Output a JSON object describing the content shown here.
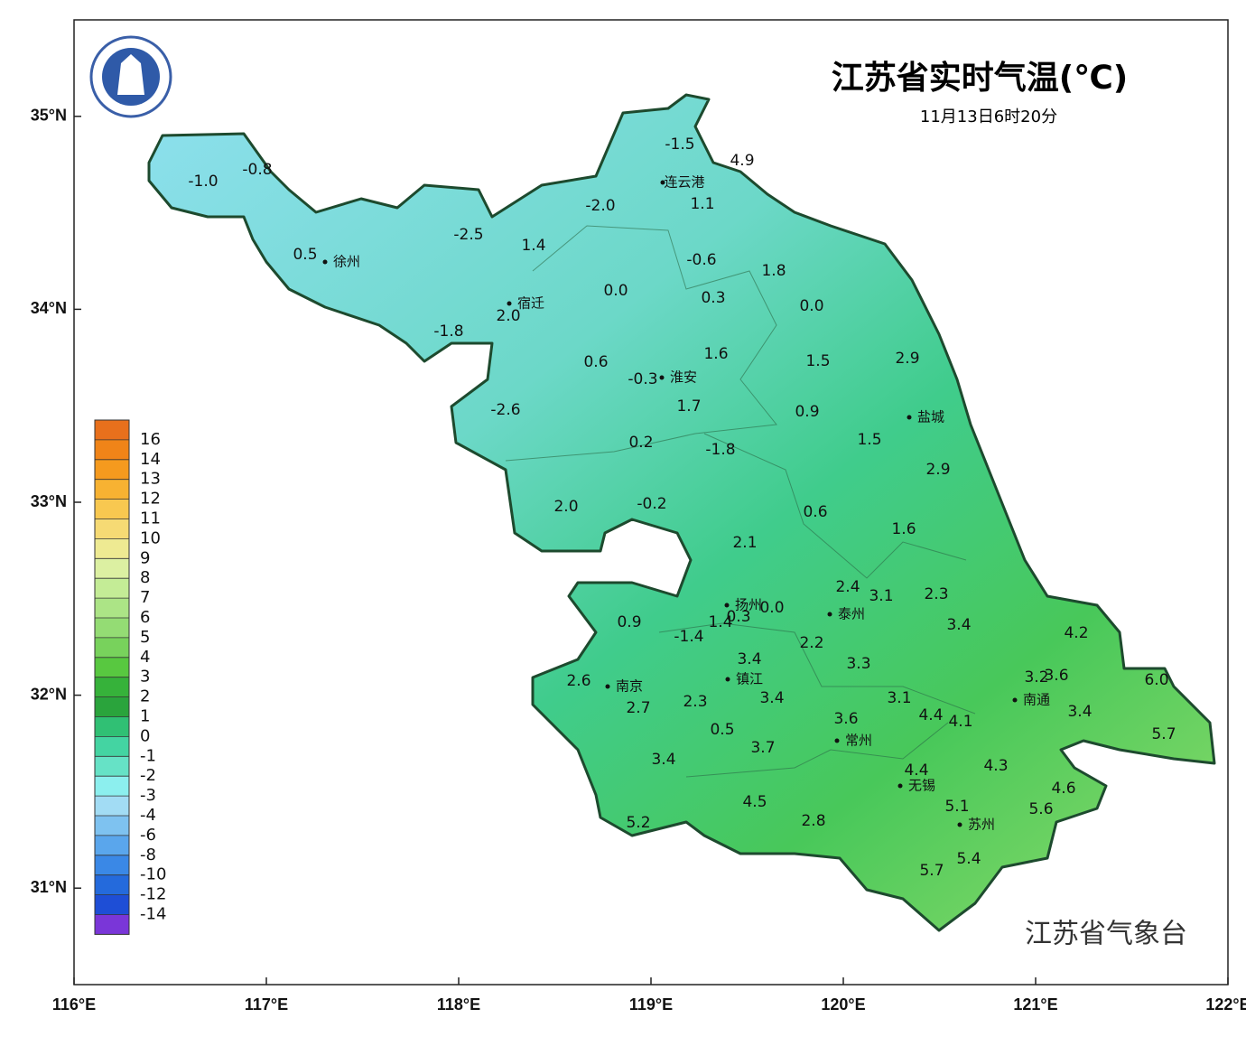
{
  "header": {
    "title": "江苏省实时气温(℃)",
    "subtitle": "11月13日6时20分"
  },
  "axes": {
    "xlim": [
      116,
      122
    ],
    "ylim": [
      30.5,
      35.5
    ],
    "xticks": [
      {
        "value": 116,
        "label": "116°E"
      },
      {
        "value": 117,
        "label": "117°E"
      },
      {
        "value": 118,
        "label": "118°E"
      },
      {
        "value": 119,
        "label": "119°E"
      },
      {
        "value": 120,
        "label": "120°E"
      },
      {
        "value": 121,
        "label": "121°E"
      },
      {
        "value": 122,
        "label": "122°E"
      }
    ],
    "yticks": [
      {
        "value": 31,
        "label": "31°N"
      },
      {
        "value": 32,
        "label": "32°N"
      },
      {
        "value": 33,
        "label": "33°N"
      },
      {
        "value": 34,
        "label": "34°N"
      },
      {
        "value": 35,
        "label": "35°N"
      }
    ]
  },
  "legend": {
    "levels": [
      16,
      14,
      13,
      12,
      11,
      10,
      9,
      8,
      7,
      6,
      5,
      4,
      3,
      2,
      1,
      0,
      -1,
      -2,
      -3,
      -4,
      -6,
      -8,
      -10,
      -12,
      -14
    ],
    "colors": [
      "#e8701c",
      "#f08418",
      "#f59a1e",
      "#f7b232",
      "#f8c850",
      "#f6da74",
      "#eeea92",
      "#dcf0a2",
      "#c4ec96",
      "#acE486",
      "#94dc74",
      "#78d25c",
      "#58c840",
      "#36b23a",
      "#2aa43c",
      "#30c074",
      "#44d4a2",
      "#66e2c6",
      "#8cefee",
      "#a2dcf4",
      "#7ec2f0",
      "#5aa6ec",
      "#3a88e6",
      "#246adc",
      "#1e4ed6",
      "#7a36d8"
    ]
  },
  "cities": [
    "连云港",
    "徐州",
    "宿迁",
    "淮安",
    "盐城",
    "扬州",
    "泰州",
    "南京",
    "镇江",
    "南通",
    "常州",
    "无锡",
    "苏州"
  ],
  "stations": [
    "-1.5",
    "4.9",
    "-1.0",
    "-0.8",
    "-2.0",
    "1.1",
    "-2.5",
    "1.4",
    "0.5",
    "-0.6",
    "1.8",
    "0.0",
    "0.3",
    "0.0",
    "2.0",
    "-1.8",
    "1.6",
    "1.5",
    "2.9",
    "0.6",
    "-0.3",
    "1.7",
    "0.9",
    "-2.6",
    "1.5",
    "0.2",
    "-1.8",
    "2.9",
    "2.0",
    "-0.2",
    "0.6",
    "1.6",
    "2.1",
    "2.4",
    "3.1",
    "2.3",
    "0.3",
    "0.0",
    "0.9",
    "1.4",
    "3.4",
    "4.2",
    "-1.4",
    "2.2",
    "3.4",
    "3.3",
    "3.2",
    "3.6",
    "6.0",
    "2.6",
    "2.7",
    "2.3",
    "3.4",
    "3.1",
    "4.4",
    "4.1",
    "3.4",
    "3.6",
    "0.5",
    "5.7",
    "3.7",
    "3.4",
    "4.3",
    "4.4",
    "4.6",
    "4.5",
    "5.1",
    "5.6",
    "2.8",
    "5.2",
    "5.4",
    "5.7"
  ],
  "credit": "江苏省气象台"
}
